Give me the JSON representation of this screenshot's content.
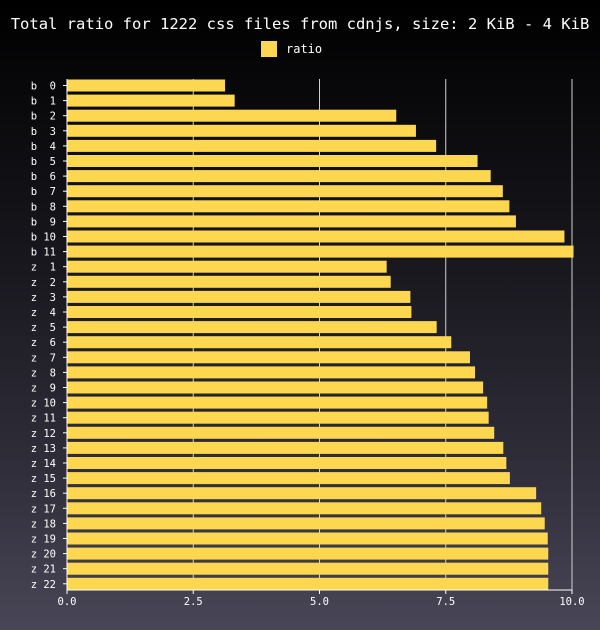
{
  "chart_data": {
    "type": "bar",
    "orientation": "horizontal",
    "title": "Total ratio for 1222 css files from cdnjs, size: 2 KiB - 4 KiB",
    "xlabel": "",
    "ylabel": "",
    "xlim": [
      0,
      10
    ],
    "x_ticks": [
      "0.0",
      "2.5",
      "5.0",
      "7.5",
      "10.0"
    ],
    "grid": "vertical",
    "legend_position": "top",
    "categories": [
      "b  0",
      "b  1",
      "b  2",
      "b  3",
      "b  4",
      "b  5",
      "b  6",
      "b  7",
      "b  8",
      "b  9",
      "b 10",
      "b 11",
      "z  1",
      "z  2",
      "z  3",
      "z  4",
      "z  5",
      "z  6",
      "z  7",
      "z  8",
      "z  9",
      "z 10",
      "z 11",
      "z 12",
      "z 13",
      "z 14",
      "z 15",
      "z 16",
      "z 17",
      "z 18",
      "z 19",
      "z 20",
      "z 21",
      "z 22"
    ],
    "series": [
      {
        "name": "ratio",
        "color": "#fdd74f",
        "values": [
          3.13,
          3.32,
          6.52,
          6.91,
          7.31,
          8.13,
          8.39,
          8.63,
          8.76,
          8.89,
          9.85,
          10.03,
          6.33,
          6.41,
          6.8,
          6.82,
          7.32,
          7.61,
          7.98,
          8.08,
          8.24,
          8.32,
          8.35,
          8.46,
          8.64,
          8.7,
          8.77,
          9.29,
          9.39,
          9.46,
          9.52,
          9.53,
          9.53,
          9.53
        ]
      }
    ]
  },
  "colors": {
    "bar": "#fdd74f",
    "grid": "#d0d0d0",
    "axis": "#ffffff",
    "text": "#ffffff"
  }
}
